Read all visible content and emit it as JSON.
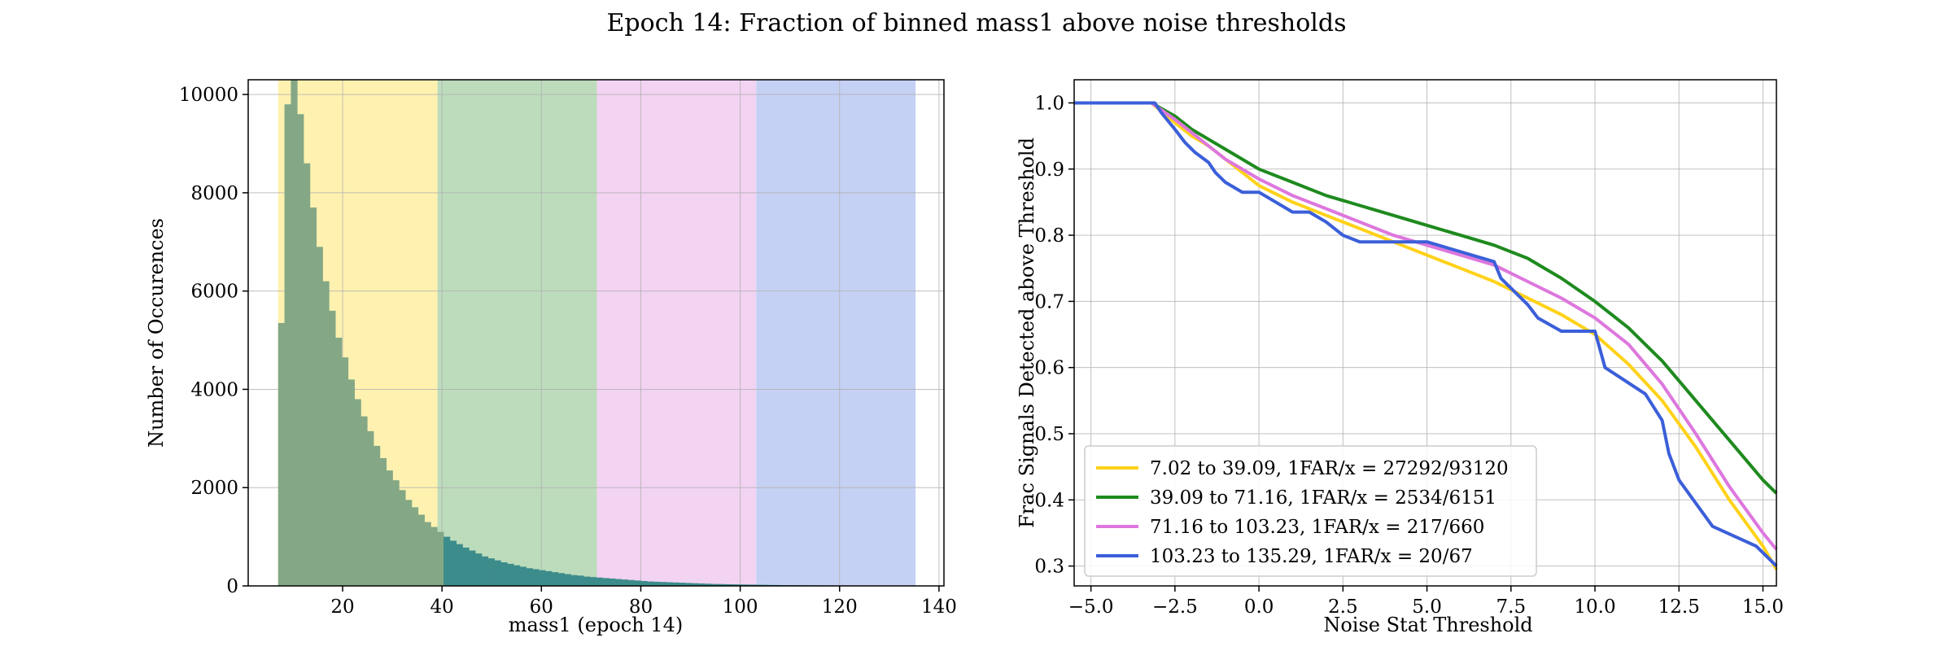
{
  "figure": {
    "title": "Epoch 14: Fraction of binned mass1 above noise thresholds"
  },
  "chart_data": [
    {
      "type": "bar",
      "title": "",
      "xlabel": "mass1 (epoch 14)",
      "ylabel": "Number of Occurences",
      "xlim": [
        1,
        141
      ],
      "ylim": [
        0,
        10300
      ],
      "xticks": [
        "20",
        "40",
        "60",
        "80",
        "100",
        "120",
        "140"
      ],
      "yticks": [
        "0",
        "2000",
        "4000",
        "6000",
        "8000",
        "10000"
      ],
      "grid": true,
      "bands": [
        {
          "x0": 7.02,
          "x1": 39.09,
          "color": "#fff2b0"
        },
        {
          "x0": 39.09,
          "x1": 71.16,
          "color": "#bddcbc"
        },
        {
          "x0": 71.16,
          "x1": 103.23,
          "color": "#f2d3f2"
        },
        {
          "x0": 103.23,
          "x1": 135.29,
          "color": "#c5d1f4"
        }
      ],
      "bins": {
        "start": 7.02,
        "width": 1.28,
        "color_low": "#84a886",
        "color_high": "#3d8c8c",
        "split": 39.09,
        "values": [
          5350,
          9800,
          10300,
          9600,
          8600,
          7700,
          6900,
          6200,
          5600,
          5050,
          4650,
          4200,
          3800,
          3450,
          3150,
          2850,
          2600,
          2350,
          2150,
          1950,
          1750,
          1600,
          1450,
          1300,
          1200,
          1100,
          1000,
          920,
          850,
          780,
          720,
          660,
          600,
          560,
          520,
          480,
          450,
          420,
          390,
          360,
          340,
          320,
          300,
          280,
          260,
          240,
          220,
          210,
          190,
          180,
          170,
          160,
          150,
          140,
          130,
          120,
          110,
          100,
          90,
          85,
          80,
          75,
          70,
          65,
          60,
          55,
          50,
          45,
          40,
          38,
          35,
          32,
          30,
          28,
          26,
          24,
          22,
          20,
          18,
          16,
          15,
          14,
          13,
          12,
          11,
          10,
          9,
          8,
          7,
          6,
          6,
          5,
          5,
          4,
          4,
          3,
          3,
          3,
          2,
          2
        ]
      }
    },
    {
      "type": "line",
      "title": "",
      "xlabel": "Noise Stat Threshold",
      "ylabel": "Frac Signals Detected above Threshold",
      "xlim": [
        -5.5,
        15.4
      ],
      "ylim": [
        0.27,
        1.035
      ],
      "xticks": [
        -5.0,
        -2.5,
        0.0,
        2.5,
        5.0,
        7.5,
        10.0,
        12.5,
        15.0
      ],
      "xtick_labels": [
        "−5.0",
        "−2.5",
        "0.0",
        "2.5",
        "5.0",
        "7.5",
        "10.0",
        "12.5",
        "15.0"
      ],
      "yticks": [
        0.3,
        0.4,
        0.5,
        0.6,
        0.7,
        0.8,
        0.9,
        1.0
      ],
      "ytick_labels": [
        "0.3",
        "0.4",
        "0.5",
        "0.6",
        "0.7",
        "0.8",
        "0.9",
        "1.0"
      ],
      "grid": true,
      "legend_position": "lower-left",
      "series": [
        {
          "name": "7.02 to 39.09, 1FAR/x = 27292/93120",
          "color": "#ffd21a",
          "x": [
            -5.5,
            -3.2,
            -2.5,
            -2,
            -1.5,
            -1,
            -0.5,
            0,
            1,
            2,
            3,
            4,
            5,
            6,
            7,
            8,
            9,
            10,
            11,
            12,
            13,
            14,
            15,
            15.4
          ],
          "y": [
            1.0,
            1.0,
            0.97,
            0.95,
            0.935,
            0.915,
            0.895,
            0.875,
            0.85,
            0.83,
            0.81,
            0.79,
            0.77,
            0.75,
            0.73,
            0.705,
            0.68,
            0.65,
            0.605,
            0.55,
            0.48,
            0.4,
            0.33,
            0.295
          ]
        },
        {
          "name": "39.09 to 71.16, 1FAR/x = 2534/6151",
          "color": "#1e8a1e",
          "x": [
            -5.5,
            -3.2,
            -2.5,
            -2,
            -1.5,
            -1,
            -0.5,
            0,
            1,
            2,
            3,
            4,
            5,
            6,
            7,
            8,
            9,
            10,
            11,
            12,
            13,
            14,
            15,
            15.4
          ],
          "y": [
            1.0,
            1.0,
            0.98,
            0.96,
            0.945,
            0.93,
            0.915,
            0.9,
            0.88,
            0.86,
            0.845,
            0.83,
            0.815,
            0.8,
            0.785,
            0.765,
            0.735,
            0.7,
            0.66,
            0.61,
            0.55,
            0.49,
            0.43,
            0.41
          ]
        },
        {
          "name": "71.16 to 103.23, 1FAR/x = 217/660",
          "color": "#dd77dd",
          "x": [
            -5.5,
            -3.2,
            -2.5,
            -2,
            -1.5,
            -1,
            -0.5,
            0,
            1,
            2,
            3,
            4,
            5,
            6,
            7,
            8,
            9,
            10,
            11,
            12,
            13,
            14,
            15,
            15.4
          ],
          "y": [
            1.0,
            1.0,
            0.975,
            0.955,
            0.935,
            0.915,
            0.9,
            0.885,
            0.86,
            0.84,
            0.82,
            0.8,
            0.785,
            0.77,
            0.755,
            0.73,
            0.705,
            0.675,
            0.635,
            0.575,
            0.5,
            0.42,
            0.35,
            0.325
          ]
        },
        {
          "name": "103.23 to 135.29, 1FAR/x = 20/67",
          "color": "#3b5fd9",
          "x": [
            -5.5,
            -3.1,
            -2.9,
            -2.5,
            -2.2,
            -1.9,
            -1.5,
            -1.3,
            -1.0,
            -0.5,
            0.0,
            1.0,
            1.5,
            2.0,
            2.5,
            3.0,
            5.0,
            7.0,
            7.2,
            7.5,
            8.0,
            8.3,
            9.0,
            10.0,
            10.3,
            11.5,
            12.0,
            12.2,
            12.5,
            13.5,
            14.8,
            15.4
          ],
          "y": [
            1.0,
            1.0,
            0.985,
            0.96,
            0.94,
            0.925,
            0.91,
            0.895,
            0.88,
            0.865,
            0.865,
            0.835,
            0.835,
            0.82,
            0.8,
            0.79,
            0.79,
            0.76,
            0.735,
            0.72,
            0.695,
            0.675,
            0.655,
            0.655,
            0.6,
            0.56,
            0.52,
            0.47,
            0.43,
            0.36,
            0.33,
            0.3
          ]
        }
      ]
    }
  ]
}
